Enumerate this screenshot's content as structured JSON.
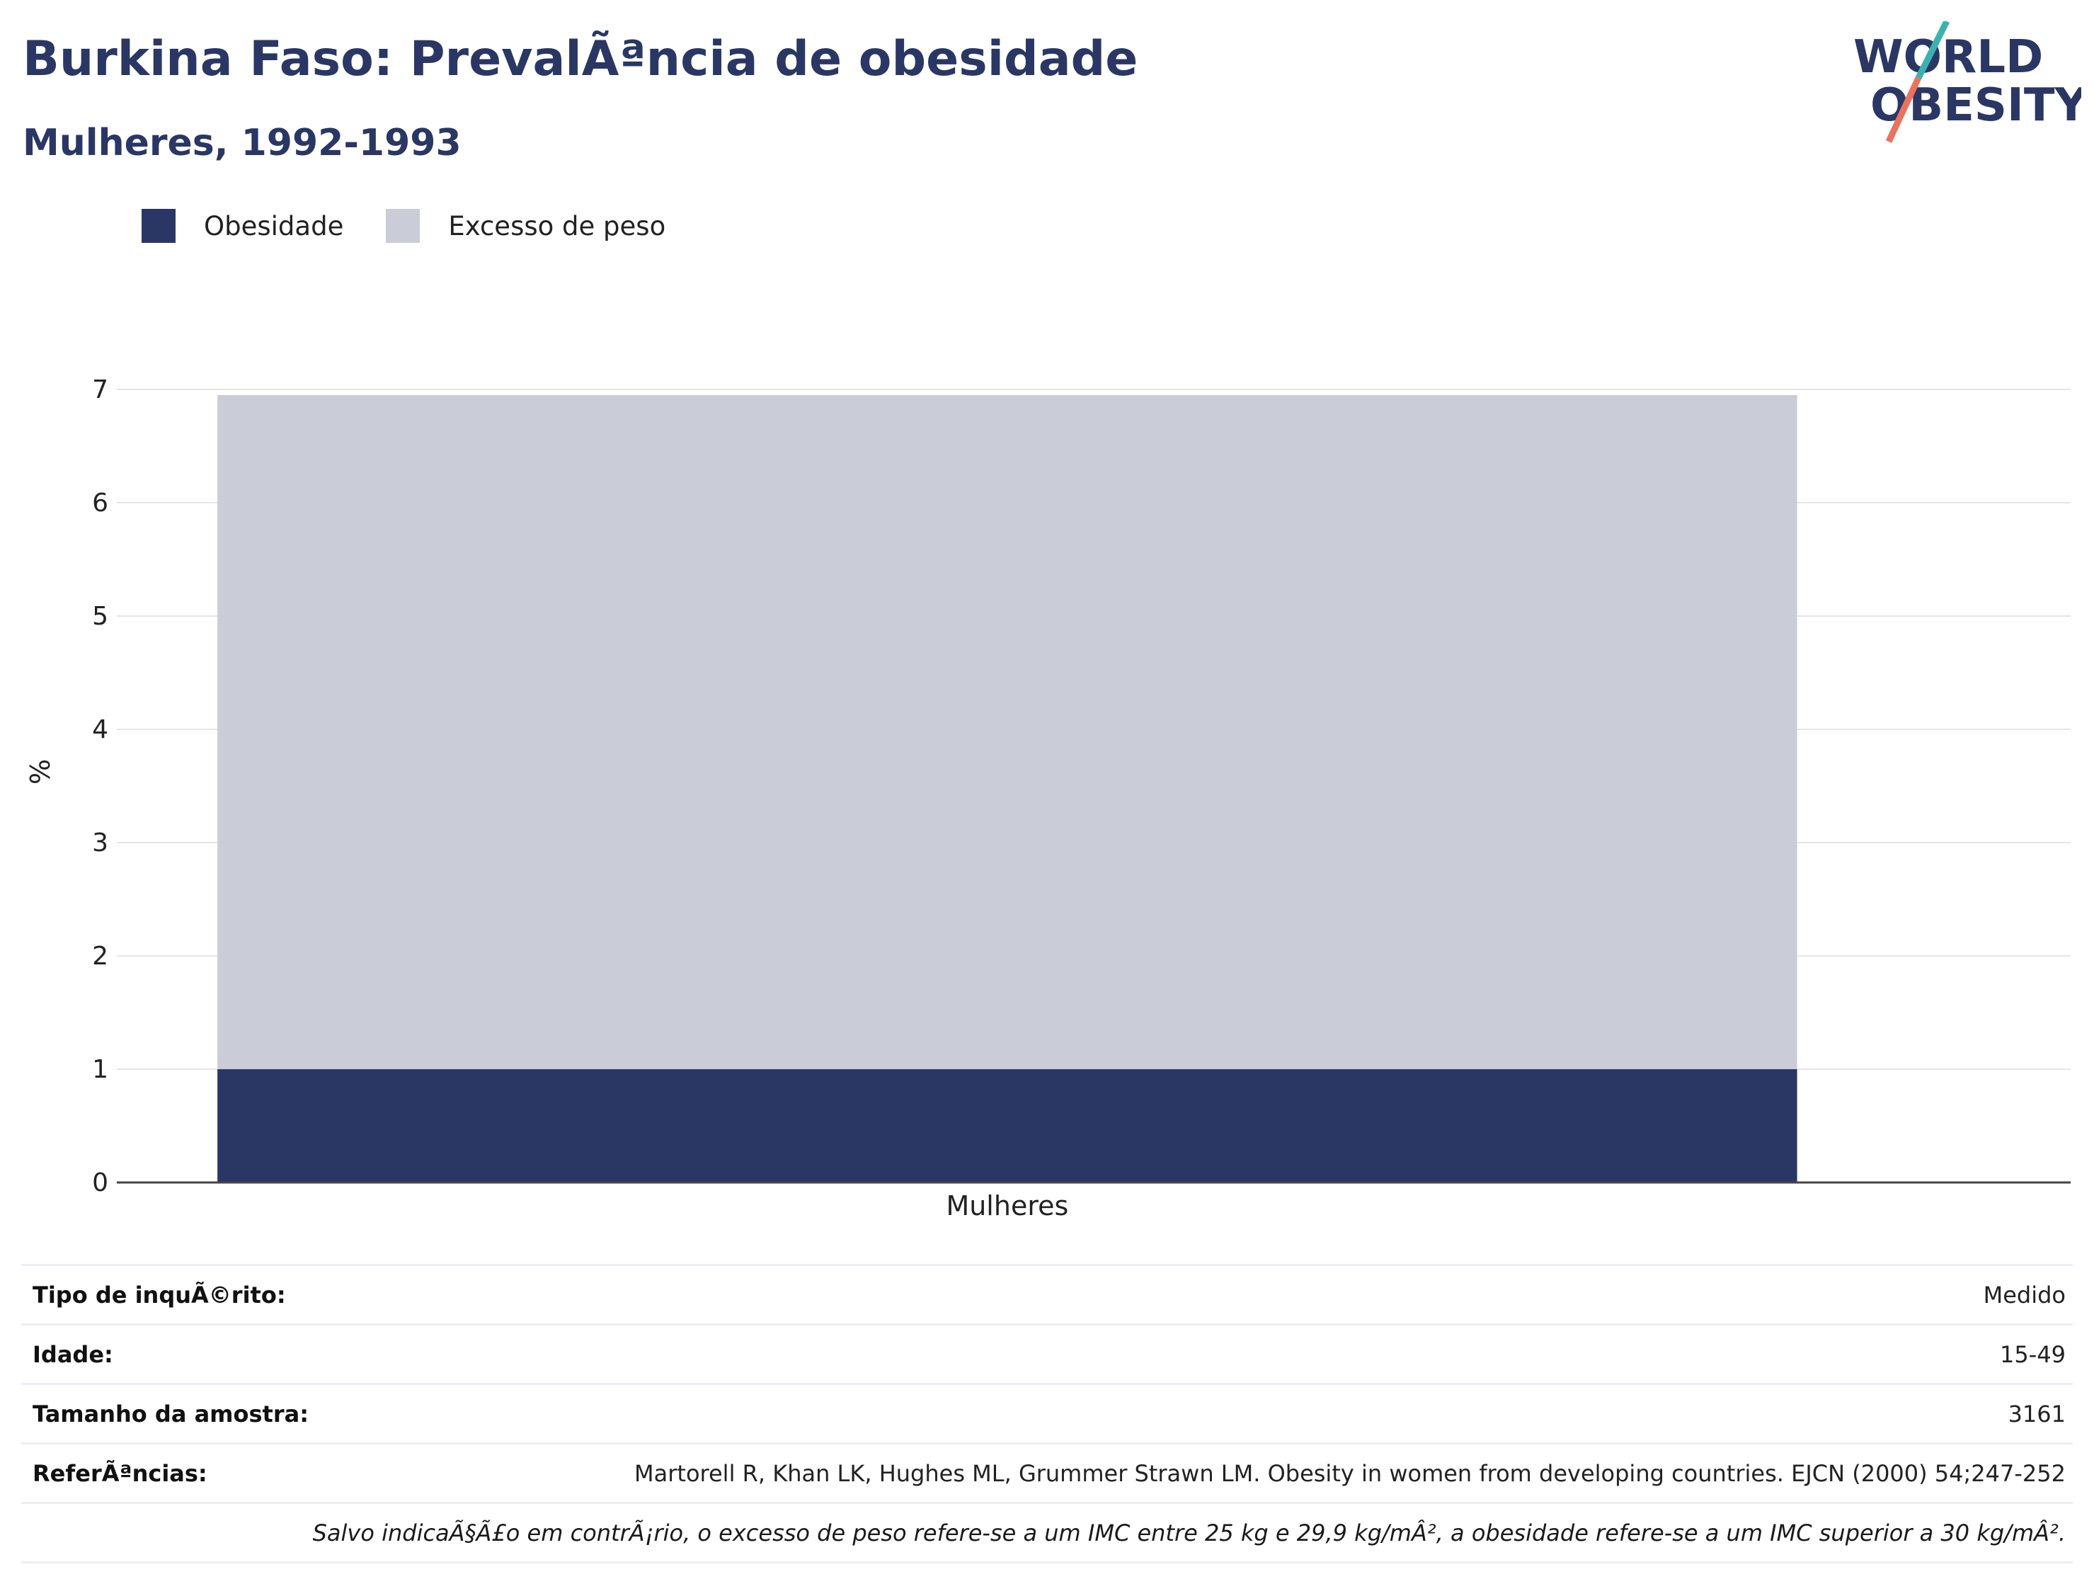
{
  "header": {
    "title": "Burkina Faso: PrevalÃªncia de obesidade",
    "subtitle": "Mulheres, 1992-1993"
  },
  "logo": {
    "line1": "WORLD",
    "line2": "OBESITY"
  },
  "colors": {
    "obesity": "#2a3764",
    "overweight": "#cacdd8",
    "title": "#2a3764"
  },
  "chart_data": {
    "type": "bar",
    "stacked": true,
    "categories": [
      "Mulheres"
    ],
    "series": [
      {
        "name": "Obesidade",
        "values": [
          1.0
        ],
        "color": "#2a3764"
      },
      {
        "name": "Excesso de peso",
        "values": [
          5.95
        ],
        "color": "#cacdd8"
      }
    ],
    "ylabel": "%",
    "ylim": [
      0,
      7
    ],
    "yticks": [
      0,
      1,
      2,
      3,
      4,
      5,
      6,
      7
    ],
    "grid": true,
    "legend": "top-left"
  },
  "table": [
    {
      "label": "Tipo de inquÃ©rito:",
      "value": "Medido"
    },
    {
      "label": "Idade:",
      "value": "15-49"
    },
    {
      "label": "Tamanho da amostra:",
      "value": "3161"
    },
    {
      "label": "ReferÃªncias:",
      "value": "Martorell R, Khan LK, Hughes ML, Grummer Strawn LM. Obesity in women from developing countries. EJCN (2000) 54;247-252"
    }
  ],
  "note": "Salvo indicaÃ§Ã£o em contrÃ¡rio, o excesso de peso refere-se a um IMC entre 25 kg e 29,9 kg/mÂ², a obesidade refere-se a um IMC superior a 30 kg/mÂ²."
}
